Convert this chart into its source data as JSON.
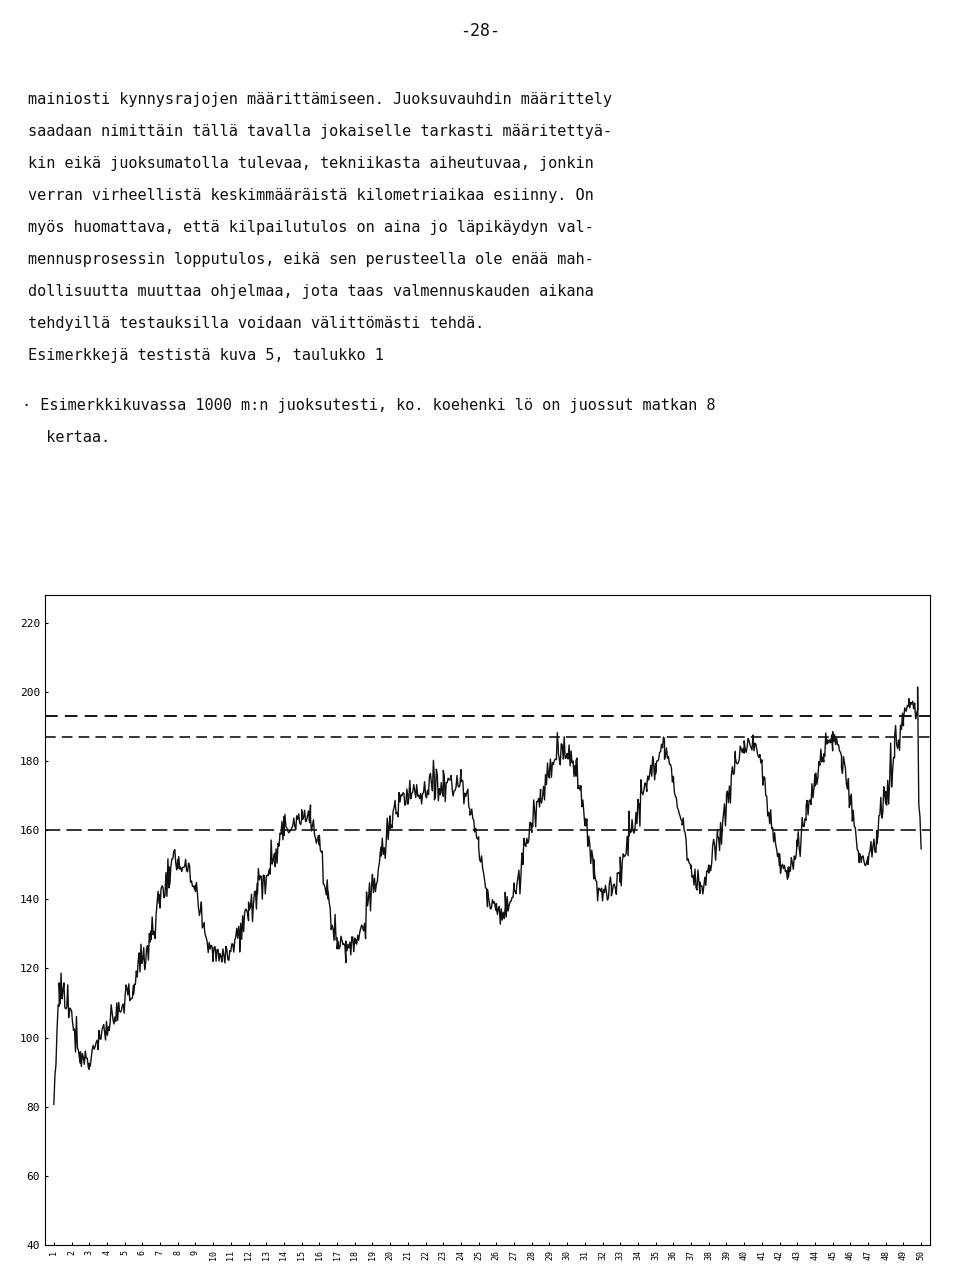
{
  "page_number": "-28-",
  "text_lines": [
    "mainiosti kynnysrajojen määrittämiseen. Juoksuvauhdin määrittely",
    "saadaan nimittäin tällä tavalla jokaiselle tarkasti määritettyä-",
    "kin eikä juoksumatolla tulevaa, tekniikasta aiheutuvaa, jonkin",
    "verran virheellistä keskimmääräistä kilometriaikaa esiinny. On",
    "myös huomattava, että kilpailutulos on aina jo läpikäydyn val-",
    "mennusprosessin lopputulos, eikä sen perusteella ole enää mah-",
    "dollisuutta muuttaa ohjelmaa, jota taas valmennuskauden aikana",
    "tehdyillä testauksilla voidaan välittömästi tehdä.",
    "Esimerkkejä testistä kuva 5, taulukko 1"
  ],
  "text2_line1": "· Esimerkkikuvassa 1000 m:n juoksutesti, ko. koehenki lö on juossut matkan 8",
  "text2_line2": "  kertaa.",
  "dashed_line_top_y": 193,
  "dashed_line_mid_y": 187,
  "dashed_line_bot_y": 160,
  "yticks": [
    40,
    60,
    80,
    100,
    120,
    140,
    160,
    180,
    200,
    220
  ],
  "ymin": 40,
  "ymax": 228,
  "xmin": 0.5,
  "xmax": 50.5,
  "n_x": 50,
  "bg": "#ffffff",
  "text_color": "#111111",
  "line_color": "#111111",
  "font_size_body": 11,
  "font_size_tick": 8
}
